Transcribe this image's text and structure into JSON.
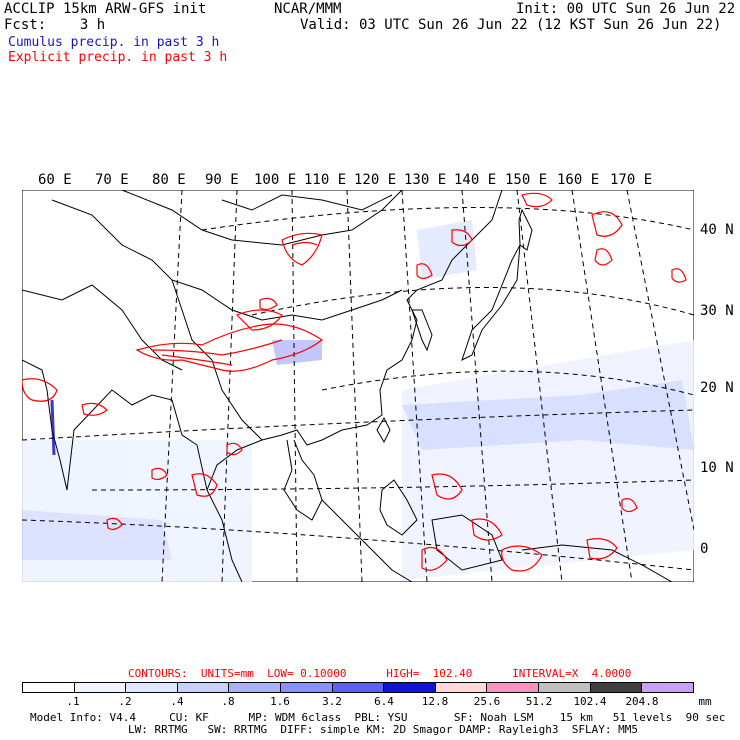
{
  "header": {
    "left1": "ACCLIP 15km ARW-GFS init",
    "left2": "Fcst:    3 h",
    "center": "NCAR/MMM",
    "right1": "Init: 00 UTC Sun 26 Jun 22",
    "right2": "Valid: 03 UTC Sun 26 Jun 22 (12 KST Sun 26 Jun 22)",
    "legend_cumulus": "Cumulus precip. in past 3 h",
    "legend_explicit": "Explicit precip. in past 3 h"
  },
  "colors": {
    "cumulus": "#1818c0",
    "explicit": "#ff0000",
    "land_border": "#000000"
  },
  "map": {
    "lon_labels": [
      "60 E",
      "70 E",
      "80 E",
      "90 E",
      "100 E",
      "110 E",
      "120 E",
      "130 E",
      "140 E",
      "150 E",
      "160 E",
      "170 E"
    ],
    "lat_labels": [
      "40 N",
      "30 N",
      "20 N",
      "10 N",
      "0"
    ]
  },
  "contours": {
    "label": "CONTOURS:  UNITS=mm  LOW= 0.10000      HIGH=  102.40      INTERVAL=X  4.0000"
  },
  "colorbar": {
    "colors": [
      "#ffffff",
      "#f0f4ff",
      "#e0e8ff",
      "#c8d0ff",
      "#a8b0ff",
      "#8890ff",
      "#6060f0",
      "#1010e0",
      "#ffd8d8",
      "#ff90c0",
      "#c0c0c0",
      "#404040",
      "#c8a0ff"
    ],
    "ticks": [
      ".1",
      ".2",
      ".4",
      ".8",
      "1.6",
      "3.2",
      "6.4",
      "12.8",
      "25.6",
      "51.2",
      "102.4",
      "204.8"
    ],
    "unit": "mm"
  },
  "footer": {
    "line1": "Model Info: V4.4     CU: KF      MP: WDM 6class  PBL: YSU       SF: Noah LSM    15 km   51 levels  90 sec",
    "line2": "LW: RRTMG   SW: RRTMG  DIFF: simple KM: 2D Smagor DAMP: Rayleigh3  SFLAY: MM5"
  }
}
